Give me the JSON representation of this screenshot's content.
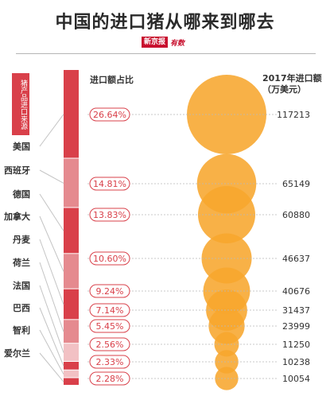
{
  "title": "中国的进口猪从哪来到哪去",
  "brand": {
    "mark": "新京报",
    "name": "有数"
  },
  "side_label": "猪产品进口来源",
  "header_share": "进口额占比",
  "header_amount": "2017年进口额（万美元）",
  "colors": {
    "accent": "#d9404a",
    "bubble": "#f7a62e",
    "connector": "#c4c4c4",
    "label_border": "#d9404a",
    "text": "#333333"
  },
  "chart_data": {
    "type": "bubble",
    "countries": [
      "美国",
      "西班牙",
      "德国",
      "加拿大",
      "丹麦",
      "荷兰",
      "法国",
      "巴西",
      "智利",
      "爱尔兰"
    ],
    "share_labels": [
      "26.64%",
      "14.81%",
      "13.83%",
      "10.60%",
      "9.24%",
      "7.14%",
      "5.45%",
      "2.56%",
      "2.33%",
      "2.28%"
    ],
    "shares": [
      26.64,
      14.81,
      13.83,
      10.6,
      9.24,
      7.14,
      5.45,
      2.56,
      2.33,
      2.28
    ],
    "amounts": [
      117213,
      65149,
      60880,
      46637,
      40676,
      31437,
      23999,
      11250,
      10238,
      10054
    ],
    "bar_colors": [
      "#d9404a",
      "#e58a8f",
      "#d9404a",
      "#e58a8f",
      "#d9404a",
      "#e58a8f",
      "#f2c1c4",
      "#d9404a",
      "#f2c1c4",
      "#d9404a"
    ]
  }
}
